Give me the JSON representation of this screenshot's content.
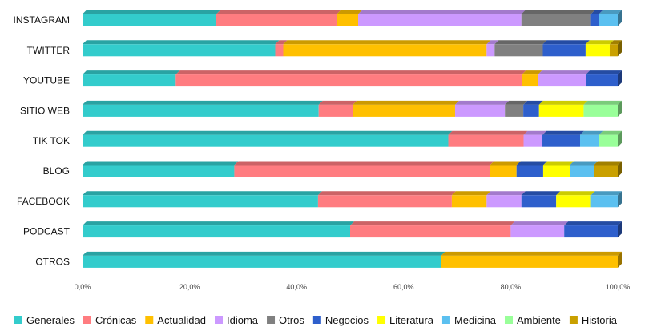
{
  "chart_data": {
    "type": "bar",
    "orientation": "horizontal",
    "stacked": "percent",
    "categories": [
      "INSTAGRAM",
      "TWITTER",
      "YOUTUBE",
      "SITIO WEB",
      "TIK TOK",
      "BLOG",
      "FACEBOOK",
      "PODCAST",
      "OTROS"
    ],
    "x_ticks": [
      "0,0%",
      "20,0%",
      "40,0%",
      "60,0%",
      "80,0%",
      "100,0%"
    ],
    "xlim": [
      0,
      100
    ],
    "grid": false,
    "legend_position": "bottom",
    "series": [
      {
        "name": "Generales",
        "color": "#33CCCC",
        "values": [
          25.0,
          36.0,
          17.5,
          45.0,
          68.0,
          28.5,
          44.0,
          50.0,
          67.0
        ]
      },
      {
        "name": "Crónicas",
        "color": "#FF7C80",
        "values": [
          22.5,
          1.5,
          65.0,
          6.5,
          14.0,
          48.0,
          25.0,
          30.0,
          0
        ]
      },
      {
        "name": "Actualidad",
        "color": "#FFC000",
        "values": [
          4.0,
          38.0,
          3.0,
          19.5,
          0,
          5.0,
          6.5,
          0,
          33.0
        ]
      },
      {
        "name": "Idioma",
        "color": "#CC99FF",
        "values": [
          30.5,
          1.5,
          9.0,
          9.5,
          3.5,
          0,
          6.5,
          10.0,
          0
        ]
      },
      {
        "name": "Otros",
        "color": "#808080",
        "values": [
          13.0,
          9.0,
          0,
          3.5,
          0,
          0,
          0,
          0,
          0
        ]
      },
      {
        "name": "Negocios",
        "color": "#2E5FCC",
        "values": [
          1.5,
          8.0,
          6.0,
          3.0,
          7.0,
          5.0,
          6.5,
          10.0,
          0
        ]
      },
      {
        "name": "Literatura",
        "color": "#FFFF00",
        "values": [
          0,
          4.5,
          0,
          8.5,
          0,
          5.0,
          6.5,
          0,
          0
        ]
      },
      {
        "name": "Medicina",
        "color": "#5BC0F0",
        "values": [
          3.5,
          0,
          0,
          0,
          3.5,
          4.5,
          5.0,
          0,
          0
        ]
      },
      {
        "name": "Ambiente",
        "color": "#99FF99",
        "values": [
          0,
          0,
          0,
          6.5,
          3.5,
          0,
          0,
          0,
          0
        ]
      },
      {
        "name": "Historia",
        "color": "#C9A000",
        "values": [
          0,
          1.5,
          0,
          0,
          0,
          4.5,
          0,
          0,
          0
        ]
      }
    ]
  }
}
